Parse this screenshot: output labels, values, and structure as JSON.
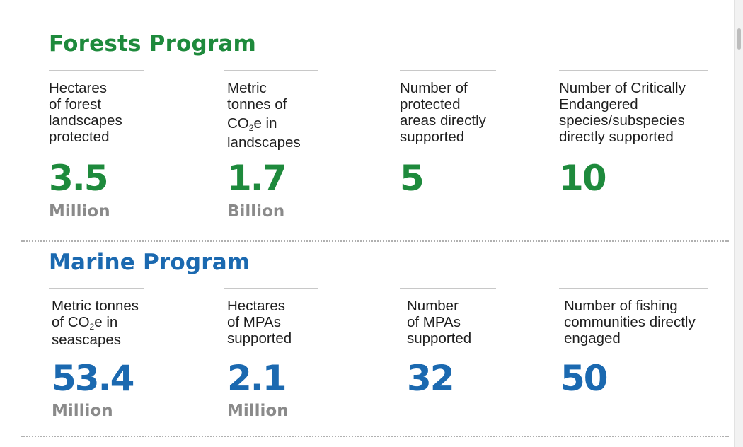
{
  "forests": {
    "title": "Forests Program",
    "stats": [
      {
        "desc": [
          "Hectares",
          "of forest",
          "landscapes",
          "protected"
        ],
        "value": "3.5",
        "unit": "Million"
      },
      {
        "desc_lines": [
          "Metric",
          "tonnes of"
        ],
        "desc_co2": {
          "pre": "CO",
          "sub": "2",
          "post": "e in"
        },
        "desc_tail": [
          "landscapes"
        ],
        "value": "1.7",
        "unit": "Billion"
      },
      {
        "desc": [
          "Number of",
          "protected",
          "areas directly",
          "supported"
        ],
        "value": "5",
        "unit": ""
      },
      {
        "desc": [
          "Number of Critically",
          "Endangered",
          "species/subspecies",
          "directly supported"
        ],
        "value": "10",
        "unit": ""
      }
    ]
  },
  "marine": {
    "title": "Marine Program",
    "stats": [
      {
        "desc_lines": [
          "Metric tonnes"
        ],
        "desc_co2": {
          "pre": "of CO",
          "sub": "2",
          "post": "e in"
        },
        "desc_tail": [
          "seascapes"
        ],
        "value": "53.4",
        "unit": "Million"
      },
      {
        "desc": [
          "Hectares",
          "of MPAs",
          "supported"
        ],
        "value": "2.1",
        "unit": "Million"
      },
      {
        "desc": [
          "Number",
          "of MPAs",
          "supported"
        ],
        "value": "32",
        "unit": ""
      },
      {
        "desc": [
          "Number of fishing",
          "communities directly",
          "engaged"
        ],
        "value": "50",
        "unit": ""
      }
    ]
  },
  "colors": {
    "forests": "#1e8a3c",
    "marine": "#1b69b0",
    "unit": "#8a8a8a"
  }
}
